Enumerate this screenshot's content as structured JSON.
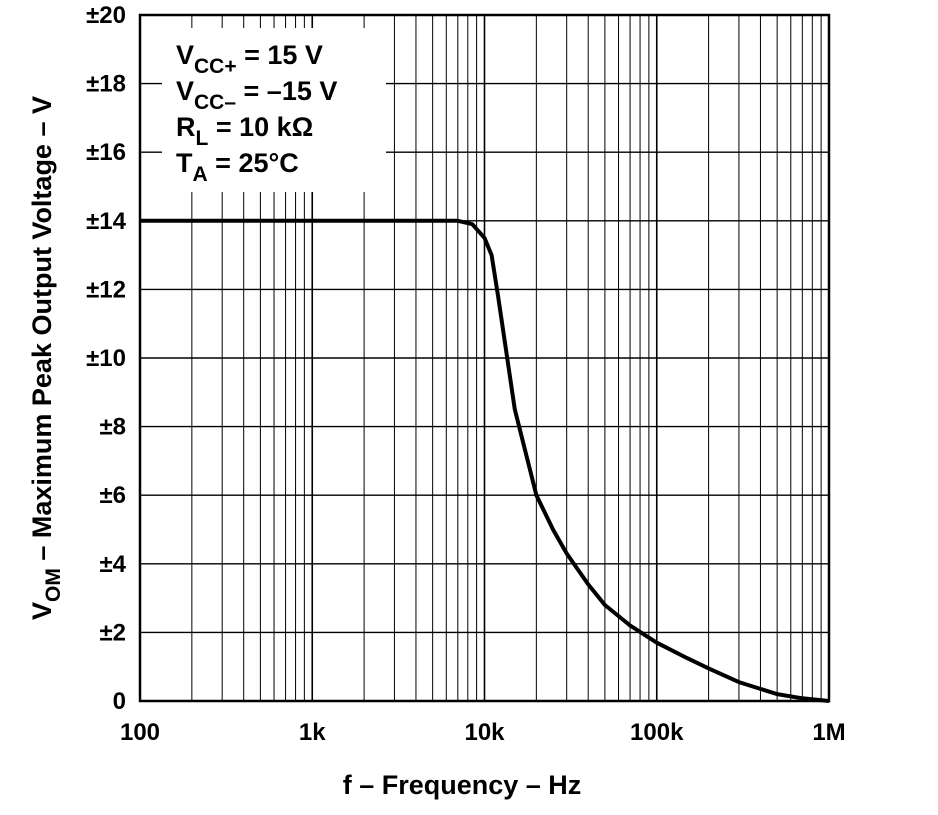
{
  "chart_data": {
    "type": "line",
    "title": "",
    "xlabel": "f – Frequency – Hz",
    "ylabel_main": "V",
    "ylabel_sub": "OM",
    "ylabel_rest": " – Maximum Peak Output Voltage – V",
    "x_scale": "log",
    "xlim": [
      100,
      1000000
    ],
    "ylim": [
      0,
      20
    ],
    "grid": true,
    "x_ticks": [
      {
        "value": 100,
        "label": "100"
      },
      {
        "value": 1000,
        "label": "1k"
      },
      {
        "value": 10000,
        "label": "10k"
      },
      {
        "value": 100000,
        "label": "100k"
      },
      {
        "value": 1000000,
        "label": "1M"
      }
    ],
    "y_ticks": [
      {
        "value": 0,
        "label": "0"
      },
      {
        "value": 2,
        "label": "±2"
      },
      {
        "value": 4,
        "label": "±4"
      },
      {
        "value": 6,
        "label": "±6"
      },
      {
        "value": 8,
        "label": "±8"
      },
      {
        "value": 10,
        "label": "±10"
      },
      {
        "value": 12,
        "label": "±12"
      },
      {
        "value": 14,
        "label": "±14"
      },
      {
        "value": 16,
        "label": "±16"
      },
      {
        "value": 18,
        "label": "±18"
      },
      {
        "value": 20,
        "label": "±20"
      }
    ],
    "conditions": [
      {
        "main": "V",
        "sub": "CC+",
        "rest": " = 15 V"
      },
      {
        "main": "V",
        "sub": "CC–",
        "rest": " = –15 V"
      },
      {
        "main": "R",
        "sub": "L",
        "rest": " = 10 kΩ"
      },
      {
        "main": "T",
        "sub": "A",
        "rest": " = 25°C"
      }
    ],
    "series": [
      {
        "x": [
          100,
          1000,
          5000,
          7000,
          8500,
          10000,
          11000,
          12000,
          15000,
          20000,
          25000,
          30000,
          40000,
          50000,
          70000,
          100000,
          150000,
          200000,
          300000,
          500000,
          700000,
          1000000
        ],
        "y": [
          14,
          14,
          14,
          14,
          13.9,
          13.5,
          13.0,
          11.8,
          8.5,
          6.0,
          5.0,
          4.3,
          3.4,
          2.8,
          2.2,
          1.7,
          1.25,
          0.95,
          0.55,
          0.2,
          0.08,
          0
        ]
      }
    ]
  }
}
